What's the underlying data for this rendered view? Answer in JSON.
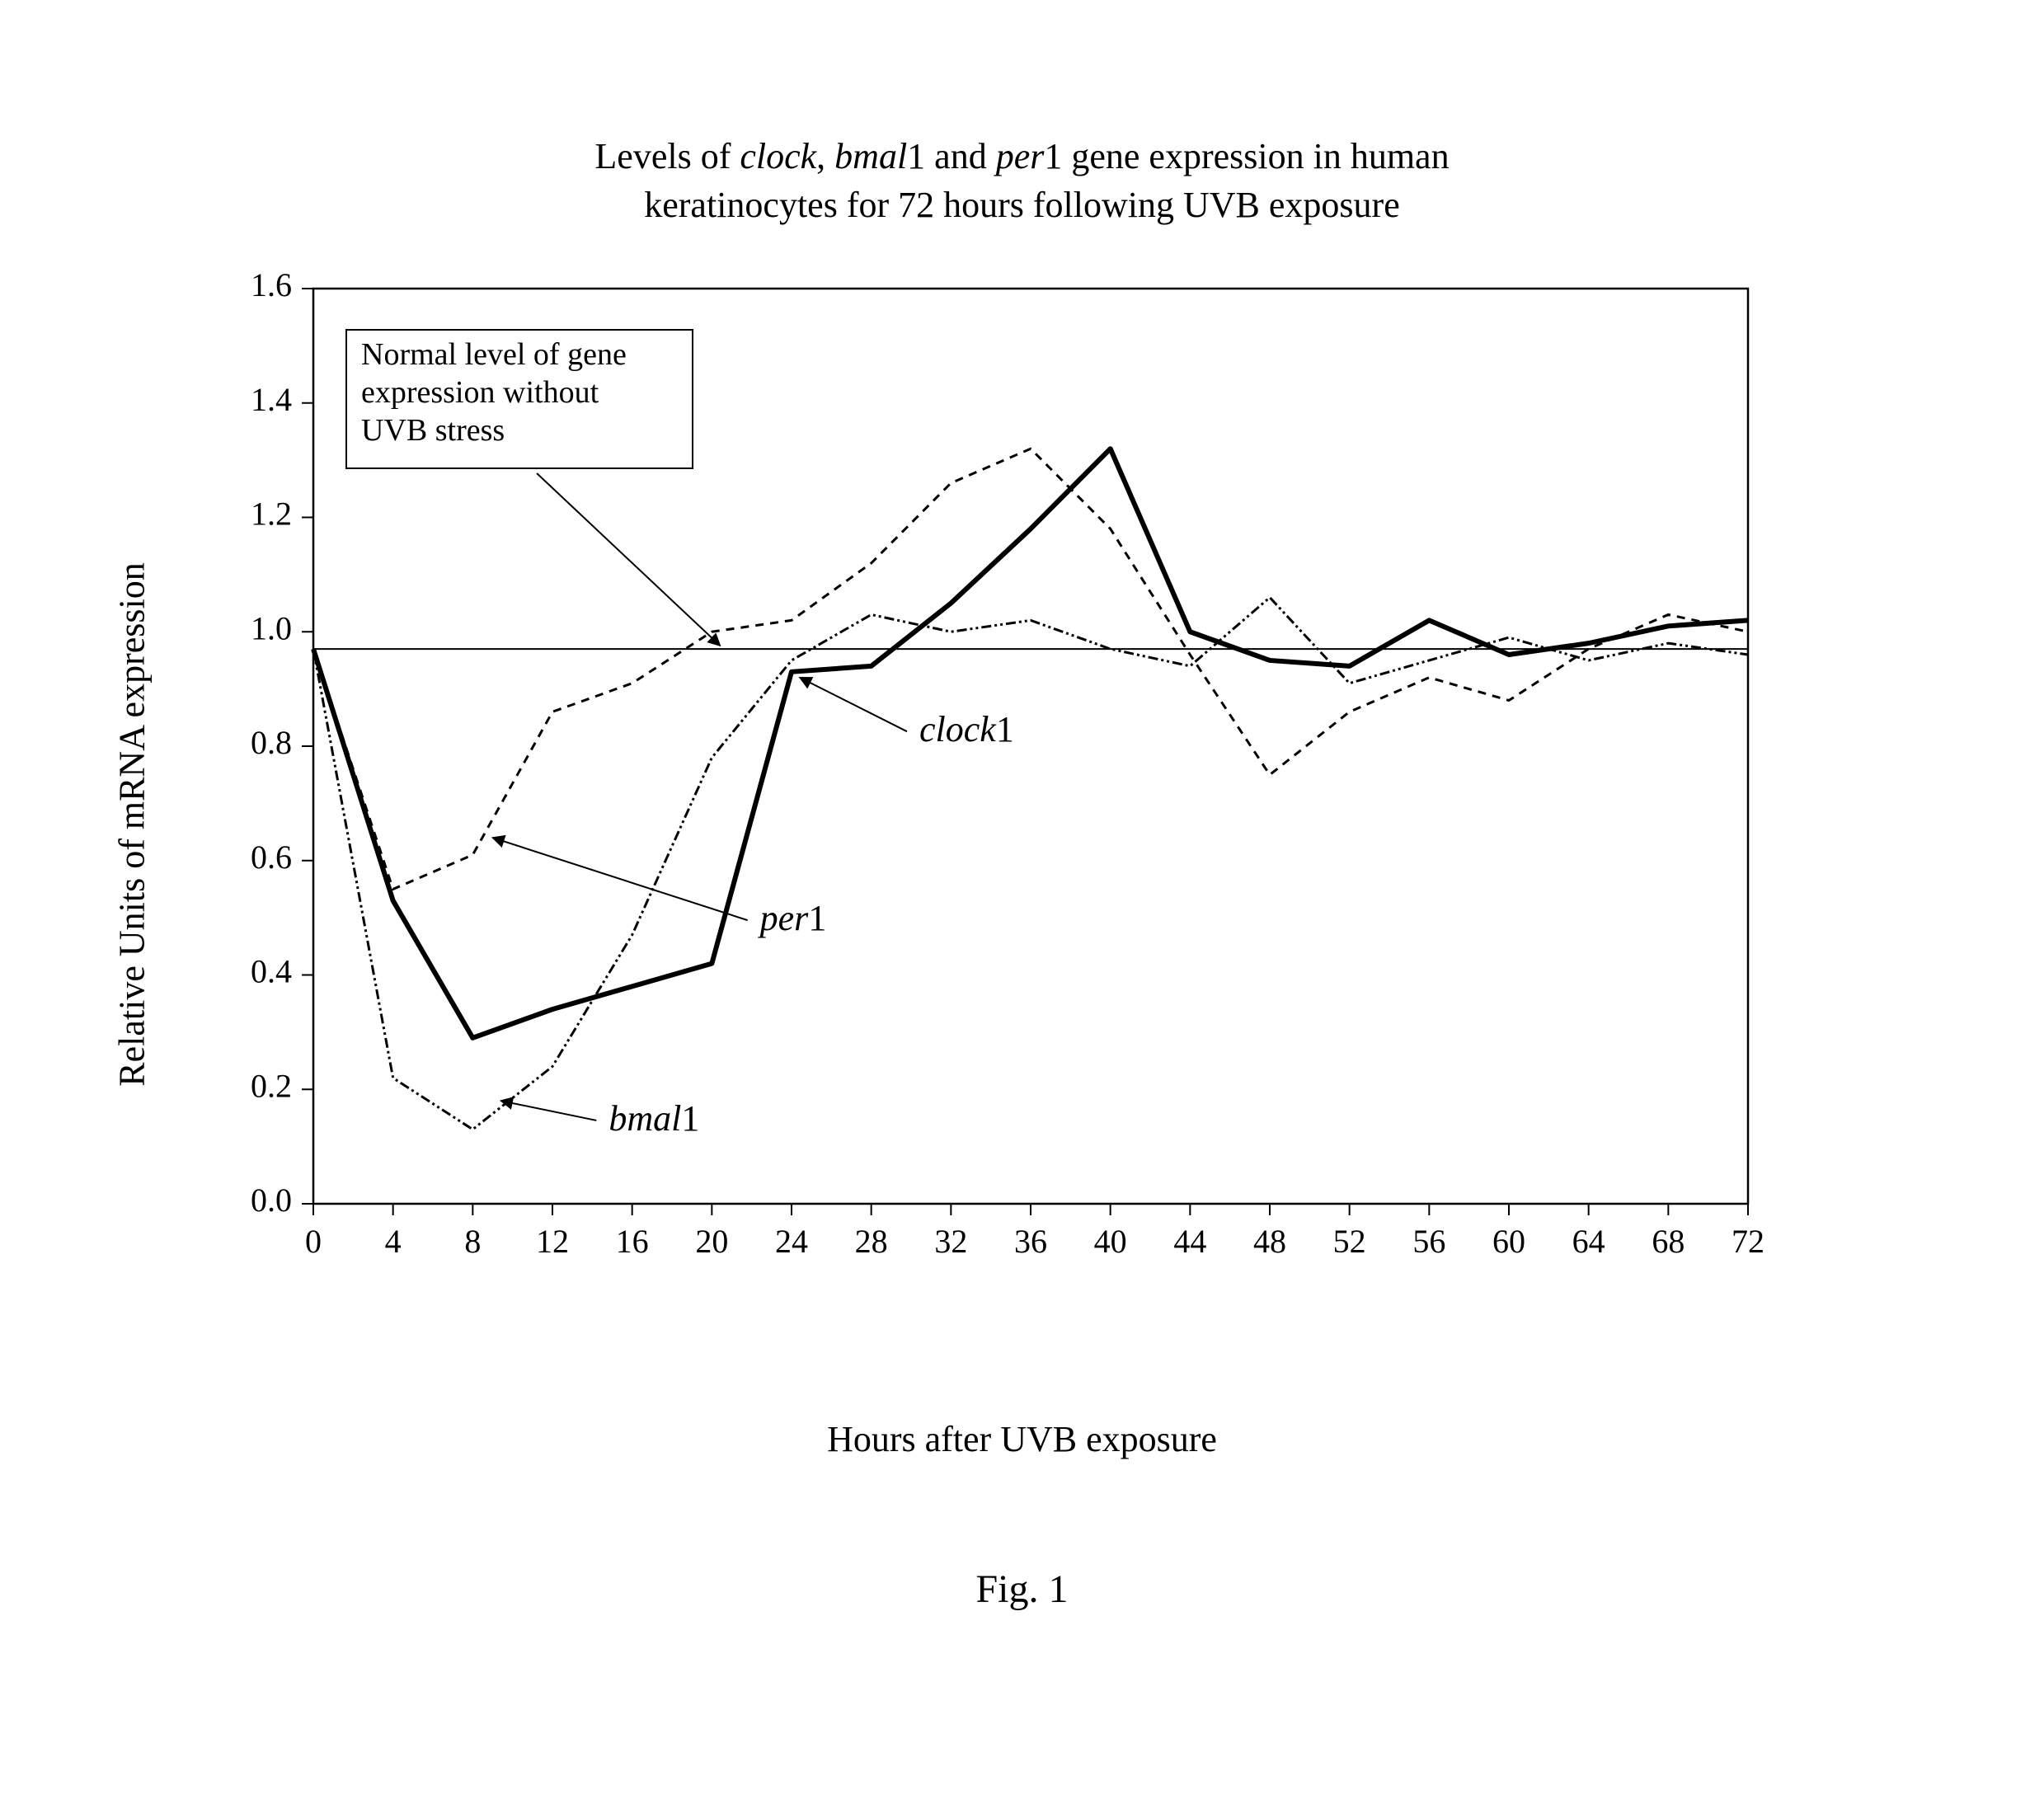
{
  "title": {
    "line1_pre": "Levels of ",
    "line1_i1": "clock",
    "line1_mid1": ", ",
    "line1_i2": "bmal",
    "line1_mid2": "1 and ",
    "line1_i3": "per",
    "line1_mid3": "1 gene expression in human",
    "line2": "keratinocytes for 72 hours following UVB exposure"
  },
  "figure_caption": "Fig. 1",
  "chart": {
    "type": "line",
    "xlabel": "Hours after UVB exposure",
    "ylabel": "Relative Units of mRNA expression",
    "xlim": [
      0,
      72
    ],
    "ylim": [
      0.0,
      1.6
    ],
    "xtick_step": 4,
    "ytick_step": 0.2,
    "xticks": [
      0,
      4,
      8,
      12,
      16,
      20,
      24,
      28,
      32,
      36,
      40,
      44,
      48,
      52,
      56,
      60,
      64,
      68,
      72
    ],
    "yticks": [
      "0.0",
      "0.2",
      "0.4",
      "0.6",
      "0.8",
      "1.0",
      "1.2",
      "1.4",
      "1.6"
    ],
    "tick_fontsize": 40,
    "label_fontsize": 44,
    "title_fontsize": 44,
    "background_color": "#ffffff",
    "border_color": "#000000",
    "border_width": 2.5,
    "tick_length": 14,
    "reference_line": {
      "y": 0.97,
      "color": "#000000",
      "width": 2
    },
    "annotation_box": {
      "text_lines": [
        "Normal level of gene",
        "expression without",
        "UVB stress"
      ],
      "fontsize": 38,
      "border_color": "#000000",
      "border_width": 2,
      "fill": "#ffffff"
    },
    "series": {
      "clock1": {
        "label_italic": "clock",
        "label_suffix": "1",
        "color": "#000000",
        "line_width": 6,
        "dash": "none",
        "x": [
          0,
          4,
          8,
          12,
          16,
          20,
          24,
          28,
          32,
          36,
          40,
          44,
          48,
          52,
          56,
          60,
          64,
          68,
          72
        ],
        "y": [
          0.97,
          0.53,
          0.29,
          0.34,
          0.38,
          0.42,
          0.93,
          0.94,
          1.05,
          1.18,
          1.32,
          1.0,
          0.95,
          0.94,
          1.02,
          0.96,
          0.98,
          1.01,
          1.02
        ]
      },
      "per1": {
        "label_italic": "per",
        "label_suffix": "1",
        "color": "#000000",
        "line_width": 3,
        "dash": "10,8",
        "x": [
          0,
          4,
          8,
          12,
          16,
          20,
          24,
          28,
          32,
          36,
          40,
          44,
          48,
          52,
          56,
          60,
          64,
          68,
          72
        ],
        "y": [
          0.97,
          0.55,
          0.61,
          0.86,
          0.91,
          1.0,
          1.02,
          1.12,
          1.26,
          1.32,
          1.18,
          0.96,
          0.75,
          0.86,
          0.92,
          0.88,
          0.97,
          1.03,
          1.0
        ]
      },
      "bmal1": {
        "label_italic": "bmal",
        "label_suffix": "1",
        "color": "#000000",
        "line_width": 3,
        "dash": "12,4,3,4,3,4",
        "x": [
          0,
          4,
          8,
          12,
          16,
          20,
          24,
          28,
          32,
          36,
          40,
          44,
          48,
          52,
          56,
          60,
          64,
          68,
          72
        ],
        "y": [
          0.97,
          0.22,
          0.13,
          0.24,
          0.47,
          0.78,
          0.95,
          1.03,
          1.0,
          1.02,
          0.97,
          0.94,
          1.06,
          0.91,
          0.95,
          0.99,
          0.95,
          0.98,
          0.96
        ]
      }
    },
    "series_labels_fontsize": 44,
    "arrow_color": "#000000",
    "arrow_width": 2
  }
}
